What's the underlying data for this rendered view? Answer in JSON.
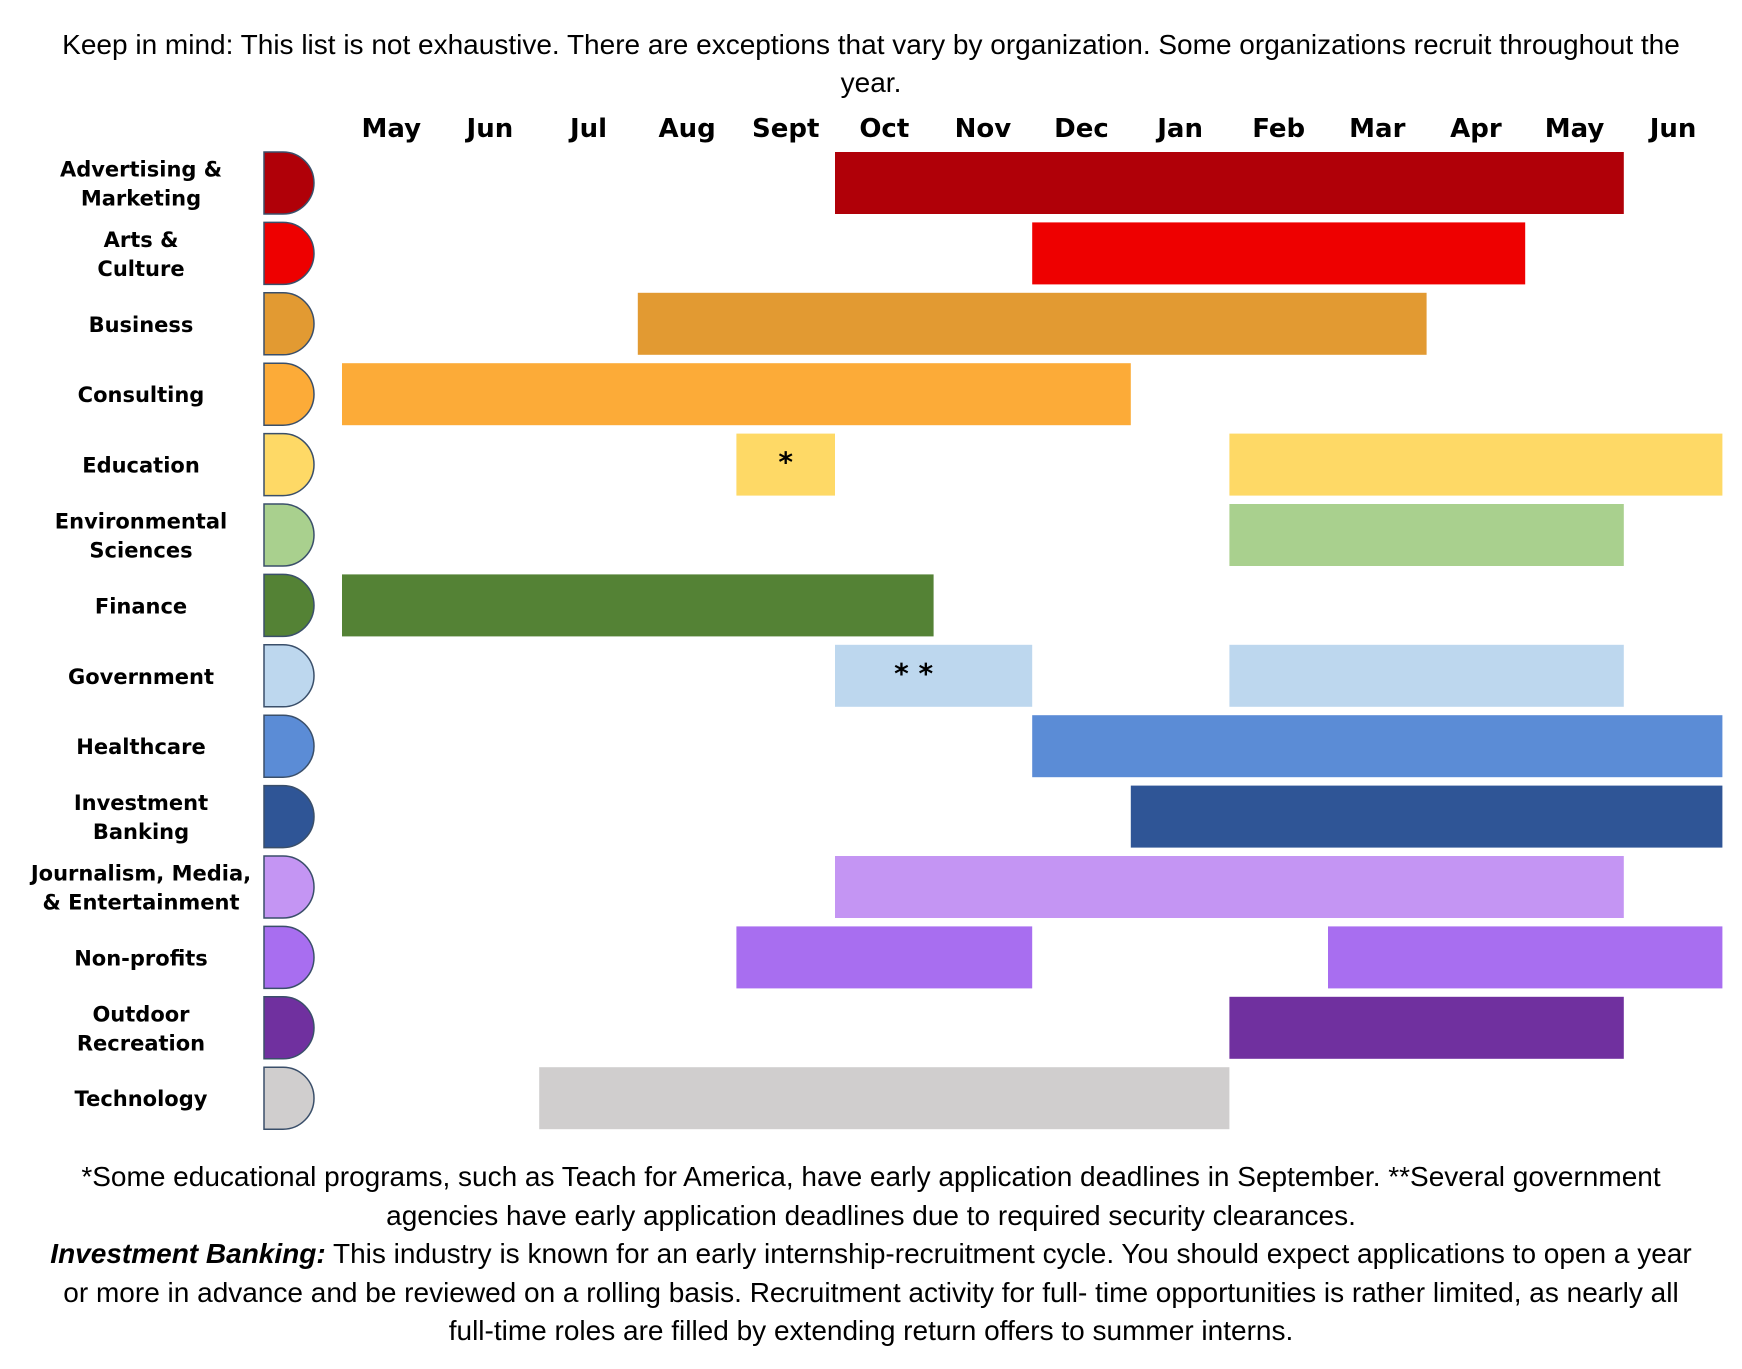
{
  "intro": "Keep in mind: This list is not exhaustive. There are exceptions that vary by organization. Some organizations recruit throughout the year.",
  "chart_data": {
    "type": "bar",
    "orientation": "horizontal-range",
    "title": "",
    "xlabel": "",
    "ylabel": "",
    "months": [
      "May",
      "Jun",
      "Jul",
      "Aug",
      "Sept",
      "Oct",
      "Nov",
      "Dec",
      "Jan",
      "Feb",
      "Mar",
      "Apr",
      "May",
      "Jun"
    ],
    "grid": false,
    "legend": "none",
    "series": [
      {
        "name": "Advertising & Marketing",
        "color": "#B00008",
        "ranges": [
          {
            "start": "Oct",
            "end": "May"
          }
        ]
      },
      {
        "name": "Arts & Culture",
        "color": "#EE0000",
        "ranges": [
          {
            "start": "Dec",
            "end": "Apr"
          }
        ]
      },
      {
        "name": "Business",
        "color": "#E29A32",
        "ranges": [
          {
            "start": "Aug",
            "end": "Mar"
          }
        ]
      },
      {
        "name": "Consulting",
        "color": "#FCAB38",
        "ranges": [
          {
            "start": "May",
            "end": "Dec"
          }
        ]
      },
      {
        "name": "Education",
        "color": "#FED966",
        "ranges": [
          {
            "start": "Sept",
            "end": "Sept",
            "label": "*"
          },
          {
            "start": "Feb",
            "end": "Jun"
          }
        ]
      },
      {
        "name": "Environmental Sciences",
        "color": "#A9D08E",
        "ranges": [
          {
            "start": "Feb",
            "end": "May"
          }
        ]
      },
      {
        "name": "Finance",
        "color": "#548235",
        "ranges": [
          {
            "start": "May",
            "end": "Oct"
          }
        ]
      },
      {
        "name": "Government",
        "color": "#BDD7EE",
        "ranges": [
          {
            "start": "Oct",
            "end": "Nov",
            "label": "**"
          },
          {
            "start": "Feb",
            "end": "May"
          }
        ]
      },
      {
        "name": "Healthcare",
        "color": "#5B8CD6",
        "ranges": [
          {
            "start": "Dec",
            "end": "Jun"
          }
        ]
      },
      {
        "name": "Investment Banking",
        "color": "#2F5596",
        "ranges": [
          {
            "start": "Jan",
            "end": "Jun"
          }
        ]
      },
      {
        "name": "Journalism, Media, & Entertainment",
        "color": "#C495F3",
        "ranges": [
          {
            "start": "Oct",
            "end": "May"
          }
        ]
      },
      {
        "name": "Non-profits",
        "color": "#A86EF0",
        "ranges": [
          {
            "start": "Sept",
            "end": "Nov"
          },
          {
            "start": "Mar",
            "end": "Jun"
          }
        ]
      },
      {
        "name": "Outdoor Recreation",
        "color": "#70309F",
        "ranges": [
          {
            "start": "Feb",
            "end": "May"
          }
        ]
      },
      {
        "name": "Technology",
        "color": "#D0CECE",
        "ranges": [
          {
            "start": "Jul",
            "end": "Jan"
          }
        ]
      }
    ],
    "category_lines": [
      [
        "Advertising &",
        "Marketing"
      ],
      [
        "Arts &",
        "Culture"
      ],
      [
        "Business"
      ],
      [
        "Consulting"
      ],
      [
        "Education"
      ],
      [
        "Environmental",
        "Sciences"
      ],
      [
        "Finance"
      ],
      [
        "Government"
      ],
      [
        "Healthcare"
      ],
      [
        "Investment",
        "Banking"
      ],
      [
        "Journalism, Media,",
        "& Entertainment"
      ],
      [
        "Non-profits"
      ],
      [
        "Outdoor",
        "Recreation"
      ],
      [
        "Technology"
      ]
    ]
  },
  "notes": {
    "line1": "*Some educational programs, such as Teach for America, have early application deadlines in September. **Several government agencies have early application deadlines due to required security clearances.",
    "ib_label": "Investment Banking:",
    "ib_text": " This industry is known for an early internship-recruitment cycle. You should expect applications to open a year or more in advance and be reviewed on a rolling basis. Recruitment activity for full- time opportunities is rather limited, as nearly all full-time roles are filled by extending return offers to summer interns."
  }
}
